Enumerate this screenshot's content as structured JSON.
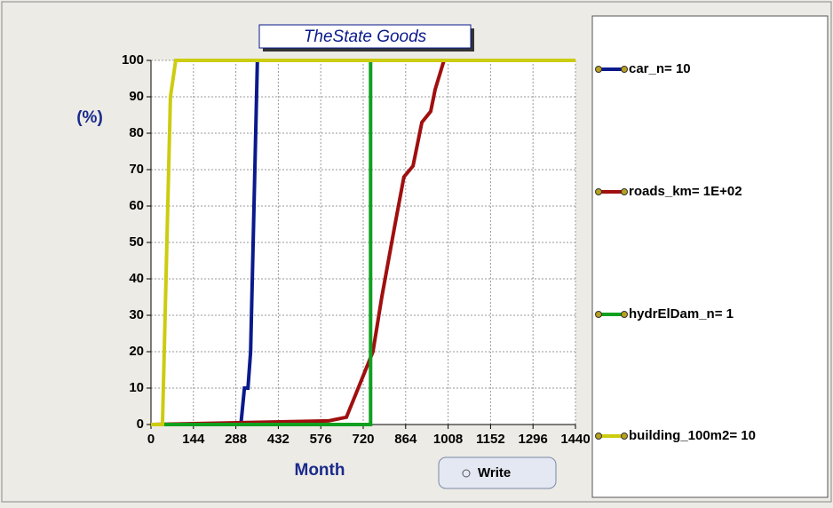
{
  "chart_data": {
    "type": "line",
    "title": "TheState Goods",
    "xlabel": "Month",
    "ylabel": "(%)",
    "xlim": [
      0,
      1440
    ],
    "ylim": [
      0,
      100
    ],
    "xticks": [
      0,
      144,
      288,
      432,
      576,
      720,
      864,
      1008,
      1152,
      1296,
      1440
    ],
    "yticks": [
      0,
      10,
      20,
      30,
      40,
      50,
      60,
      70,
      80,
      90,
      100
    ],
    "grid": true,
    "series": [
      {
        "name": "car_n= 10",
        "color": "#0a1a8c",
        "x": [
          0,
          305,
          317,
          329,
          338,
          361,
          1440
        ],
        "values": [
          0,
          0,
          10,
          10,
          20,
          100,
          100
        ]
      },
      {
        "name": "roads_km= 1E+02",
        "color": "#a00f0f",
        "x": [
          0,
          602,
          663,
          693,
          723,
          753,
          783,
          828,
          858,
          889,
          919,
          949,
          964,
          994,
          1440
        ],
        "values": [
          0,
          1,
          2,
          8,
          14,
          20,
          35,
          55,
          68,
          71,
          83,
          86,
          92,
          100,
          100
        ]
      },
      {
        "name": "hydrElDam_n= 1",
        "color": "#10a020",
        "x": [
          0,
          745,
          745,
          1440
        ],
        "values": [
          0,
          0,
          100,
          100
        ]
      },
      {
        "name": "building_100m2= 10",
        "color": "#cccc10",
        "x": [
          0,
          39,
          66,
          84,
          1440
        ],
        "values": [
          0,
          0,
          90,
          100,
          100
        ]
      }
    ]
  },
  "button": {
    "label": "Write"
  }
}
